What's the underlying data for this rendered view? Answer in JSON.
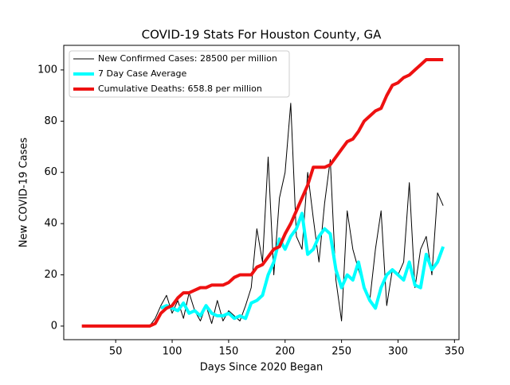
{
  "chart_data": {
    "type": "line",
    "title": "COVID-19 Stats For Houston County, GA",
    "xlabel": "Days Since 2020 Began",
    "ylabel": "New COVID-19 Cases",
    "x": [
      20,
      25,
      30,
      35,
      40,
      45,
      50,
      55,
      60,
      65,
      70,
      75,
      80,
      85,
      90,
      95,
      100,
      105,
      110,
      115,
      120,
      125,
      130,
      135,
      140,
      145,
      150,
      155,
      160,
      165,
      170,
      175,
      180,
      185,
      190,
      195,
      200,
      205,
      210,
      215,
      220,
      225,
      230,
      235,
      240,
      245,
      250,
      255,
      260,
      265,
      270,
      275,
      280,
      285,
      290,
      295,
      300,
      305,
      310,
      315,
      320,
      325,
      330,
      335,
      340
    ],
    "series": [
      {
        "name": "New Confirmed Cases: 28500 per million",
        "color": "#000000",
        "linewidth": 1,
        "values": [
          null,
          null,
          null,
          null,
          null,
          null,
          null,
          null,
          null,
          null,
          null,
          null,
          0,
          3,
          8,
          12,
          5,
          10,
          3,
          13,
          6,
          2,
          8,
          1,
          10,
          2,
          6,
          4,
          2,
          8,
          15,
          38,
          25,
          66,
          20,
          50,
          60,
          87,
          35,
          30,
          60,
          42,
          25,
          48,
          65,
          18,
          2,
          45,
          30,
          22,
          15,
          10,
          30,
          45,
          8,
          22,
          20,
          25,
          56,
          15,
          30,
          35,
          20,
          52,
          47
        ]
      },
      {
        "name": "7 Day Case Average",
        "color": "#00ffff",
        "linewidth": 4,
        "values": [
          null,
          null,
          null,
          null,
          null,
          null,
          null,
          null,
          null,
          null,
          null,
          null,
          null,
          null,
          7,
          8,
          7,
          6,
          9,
          5,
          6,
          4,
          8,
          5,
          4,
          4,
          5,
          3,
          4,
          3,
          9,
          10,
          12,
          20,
          25,
          34,
          30,
          35,
          38,
          44,
          28,
          30,
          35,
          38,
          36,
          22,
          15,
          20,
          18,
          25,
          15,
          10,
          7,
          15,
          20,
          22,
          20,
          18,
          25,
          16,
          15,
          28,
          22,
          25,
          31
        ]
      },
      {
        "name": "Cumulative Deaths: 658.8 per million",
        "color": "#ee1111",
        "linewidth": 4,
        "values": [
          0,
          0,
          0,
          0,
          0,
          0,
          0,
          0,
          0,
          0,
          0,
          0,
          0,
          1,
          5,
          7,
          8,
          11,
          13,
          13,
          14,
          15,
          15,
          16,
          16,
          16,
          17,
          19,
          20,
          20,
          20,
          23,
          24,
          27,
          30,
          31,
          36,
          40,
          45,
          50,
          55,
          62,
          62,
          62,
          63,
          66,
          69,
          72,
          73,
          76,
          80,
          82,
          84,
          85,
          90,
          94,
          95,
          97,
          98,
          100,
          102,
          104,
          104,
          104,
          104
        ]
      }
    ],
    "xlim": [
      4,
      354
    ],
    "ylim": [
      -5.3,
      109.6
    ],
    "xticks": [
      50,
      100,
      150,
      200,
      250,
      300,
      350
    ],
    "yticks": [
      0,
      20,
      40,
      60,
      80,
      100
    ],
    "legend": "upper left"
  }
}
